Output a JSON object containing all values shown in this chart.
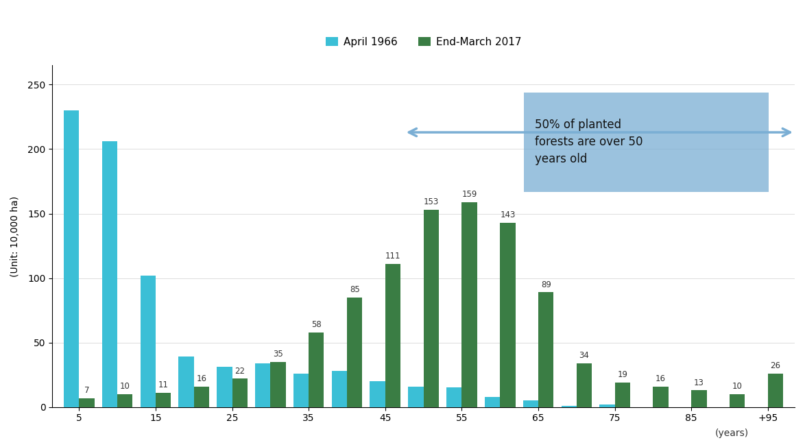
{
  "group_labels": [
    "5",
    "15",
    "25",
    "35",
    "45",
    "55",
    "65",
    "75",
    "85",
    "+95"
  ],
  "group_centers_odd": [
    5,
    15,
    25,
    35,
    45,
    55,
    65,
    75,
    85,
    95
  ],
  "april1966": [
    230,
    206,
    102,
    39,
    31,
    34,
    26,
    28,
    20,
    16,
    15,
    8,
    5,
    1,
    2,
    0,
    0,
    0,
    0
  ],
  "endmarch2017": [
    7,
    10,
    11,
    16,
    22,
    35,
    58,
    85,
    111,
    153,
    159,
    143,
    89,
    34,
    19,
    16,
    13,
    10,
    26
  ],
  "show_label_1966": [
    false,
    false,
    false,
    false,
    false,
    false,
    false,
    false,
    false,
    false,
    false,
    false,
    false,
    false,
    false,
    false,
    false,
    false,
    false
  ],
  "show_label_2017": [
    true,
    true,
    true,
    true,
    true,
    true,
    true,
    true,
    true,
    true,
    true,
    true,
    true,
    true,
    true,
    true,
    true,
    true,
    true
  ],
  "color_1966": "#3bbfd6",
  "color_2017": "#3a7d44",
  "ylabel": "(Unit: 10,000 ha)",
  "xlabel": "(years)",
  "yticks": [
    0,
    50,
    100,
    150,
    200,
    250
  ],
  "ylim": [
    0,
    265
  ],
  "legend_labels": [
    "April 1966",
    "End-March 2017"
  ],
  "annotation_text": "50% of planted\nforests are over 50\nyears old",
  "annotation_box_color": "#7aaed4",
  "annotation_arrow_color": "#7aaed4",
  "xtick_positions": [
    0,
    2,
    4,
    6,
    8,
    10,
    12,
    14,
    16,
    18
  ],
  "xtick_labels": [
    "5",
    "15",
    "25",
    "35",
    "45",
    "55",
    "65",
    "75",
    "85",
    "+95"
  ]
}
